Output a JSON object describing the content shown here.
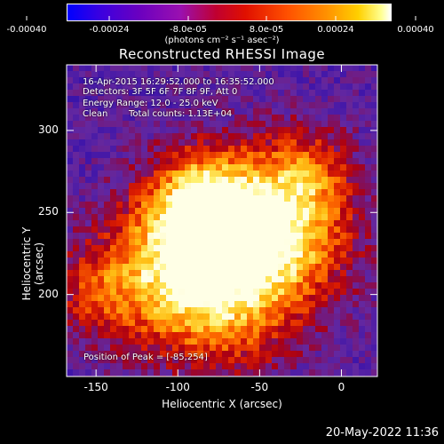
{
  "colorbar": {
    "tick_labels": [
      "-0.00040",
      "-0.00024",
      "-8.0e-05",
      "8.0e-05",
      "0.00024",
      "0.00040"
    ],
    "units": "(photons cm⁻² s⁻¹ asec⁻²)"
  },
  "chart_data": {
    "type": "heatmap",
    "title": "Reconstructed RHESSI Image",
    "xlabel": "Heliocentric X (arcsec)",
    "ylabel": "Heliocentric Y (arcsec)",
    "xlim": [
      -168,
      22
    ],
    "ylim": [
      150,
      340
    ],
    "x_ticks": [
      "-150",
      "-100",
      "-50",
      "0"
    ],
    "y_ticks": [
      "200",
      "250",
      "300"
    ],
    "x_tick_values": [
      -150,
      -100,
      -50,
      0
    ],
    "y_tick_values": [
      200,
      250,
      300
    ],
    "color_range": [
      -0.0004,
      0.0004
    ],
    "colormap": "blue-purple-red-orange-yellow-white",
    "peak": [
      -85,
      254
    ],
    "annotations": {
      "time": "16-Apr-2015 16:29:52.000 to 16:35:52.000",
      "detectors": "Detectors: 3F 5F 6F 7F 8F 9F, Att 0",
      "energy": "Energy Range: 12.0 - 25.0 keV",
      "method": "Clean",
      "counts": "Total counts: 1.13E+04",
      "peak_text": "Position of Peak = [-85,254]"
    }
  },
  "footer": {
    "timestamp": "20-May-2022 11:36"
  }
}
